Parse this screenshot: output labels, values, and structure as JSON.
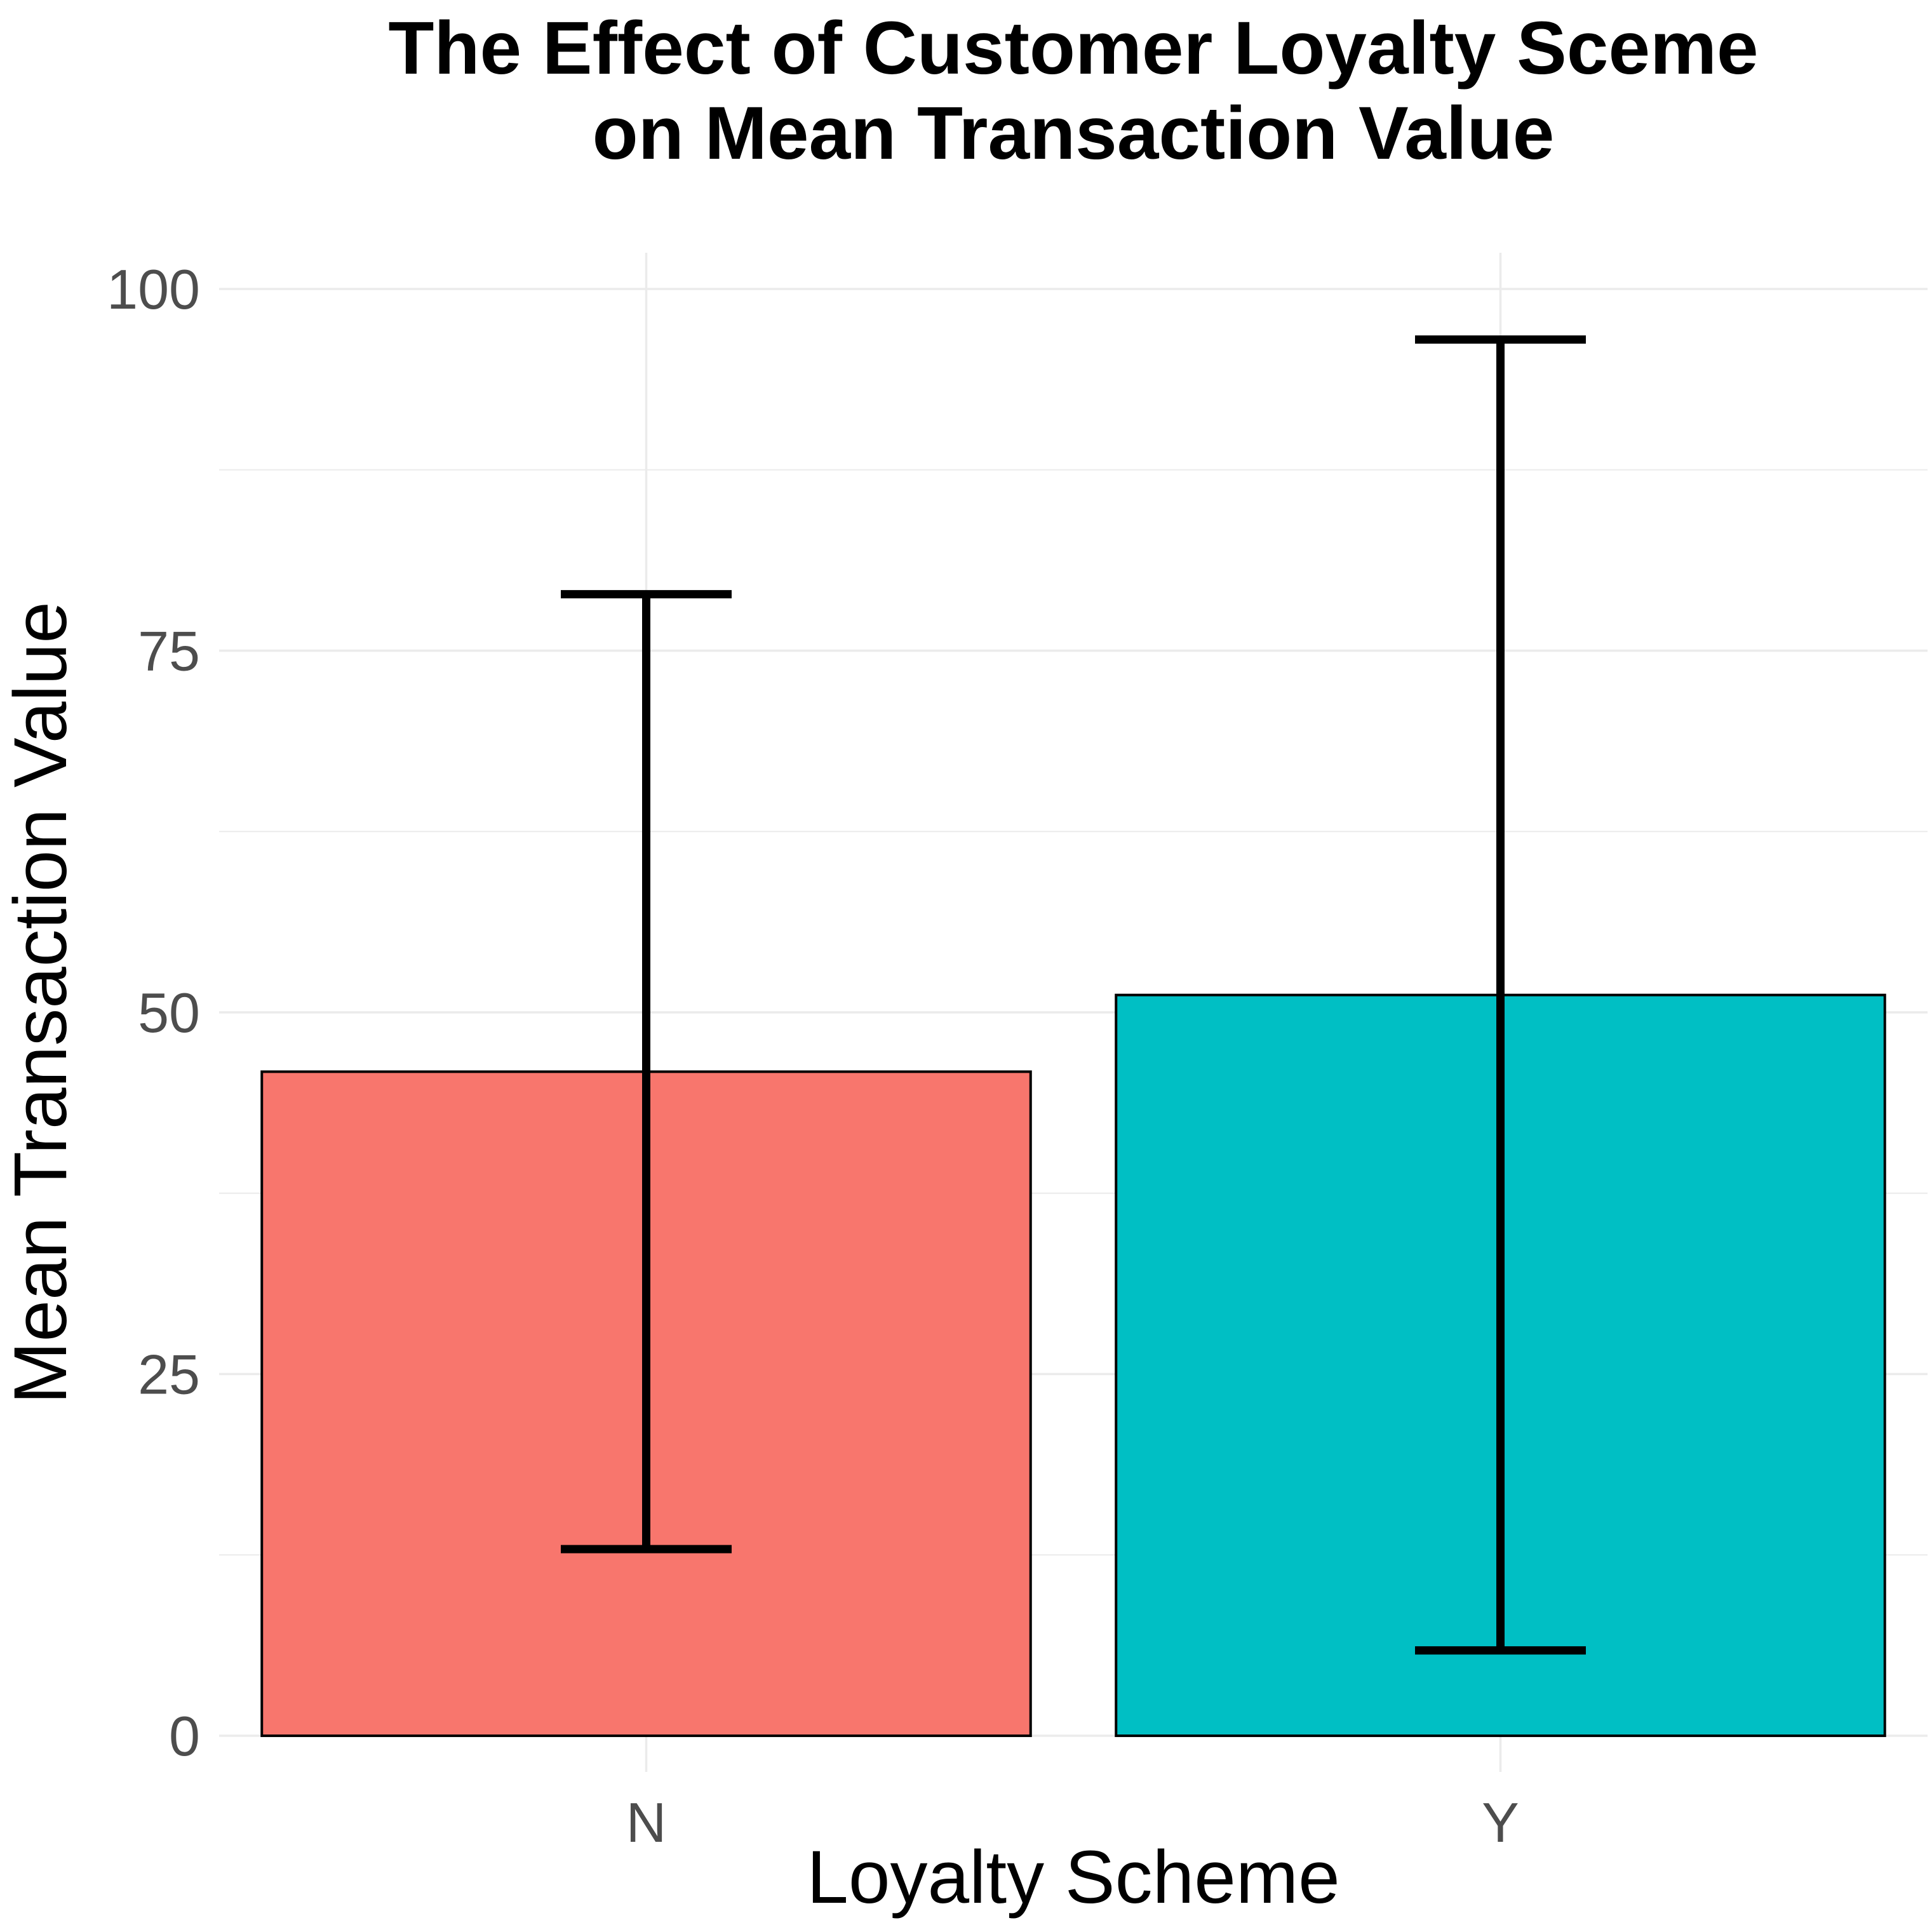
{
  "chart_data": {
    "type": "bar",
    "title_lines": [
      "The Effect of Customer Loyalty Sceme",
      "on Mean Transaction Value"
    ],
    "xlabel": "Loyalty Scheme",
    "ylabel": "Mean Transaction Value",
    "categories": [
      "N",
      "Y"
    ],
    "values": [
      45.9,
      51.2
    ],
    "error_low": [
      12.9,
      5.9
    ],
    "error_high": [
      78.9,
      96.5
    ],
    "colors": [
      "#F8766D",
      "#00BFC4"
    ],
    "ylim": [
      -2.5,
      102.5
    ],
    "yticks": [
      0,
      25,
      50,
      75,
      100
    ],
    "ytick_labels": [
      "0",
      "25",
      "50",
      "75",
      "100"
    ],
    "grid": true,
    "legend": "none"
  }
}
